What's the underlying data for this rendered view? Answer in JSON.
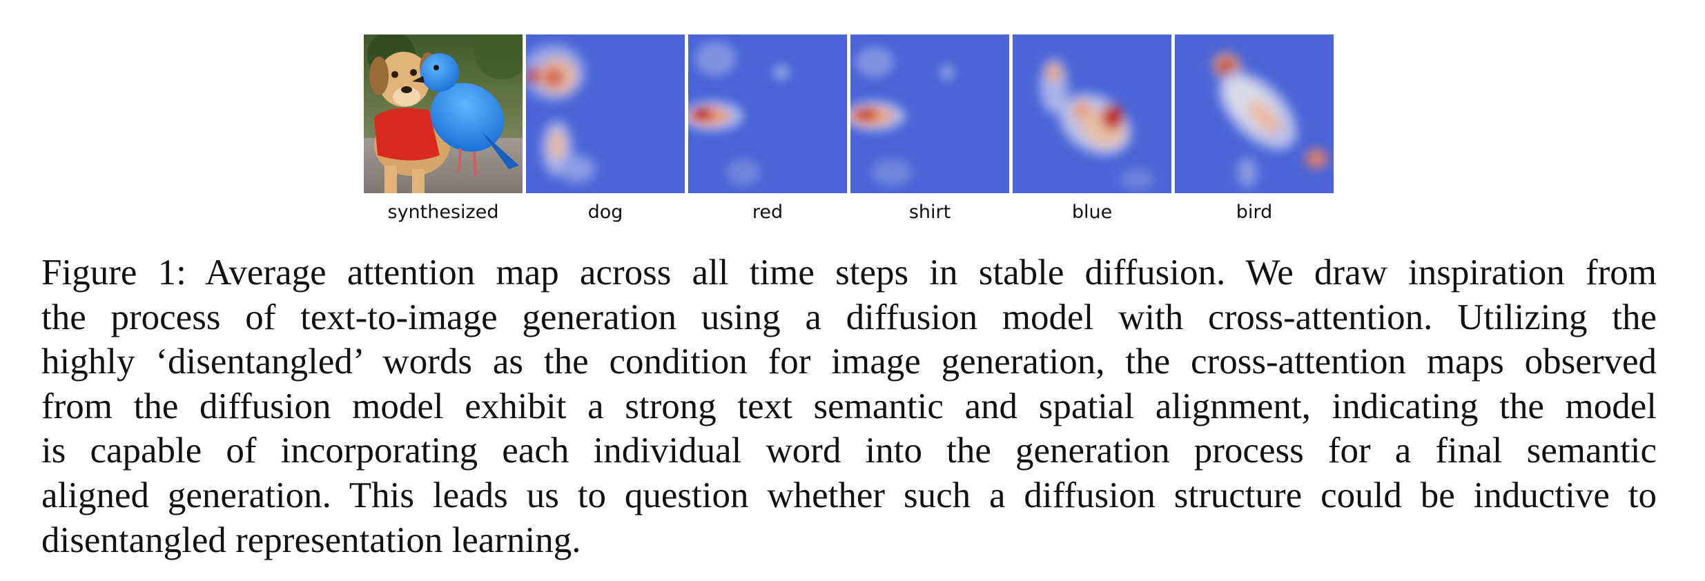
{
  "figure": {
    "panels": [
      {
        "id": "synthesized",
        "label": "synthesized",
        "kind": "photo"
      },
      {
        "id": "dog",
        "label": "dog",
        "kind": "heatmap"
      },
      {
        "id": "red",
        "label": "red",
        "kind": "heatmap"
      },
      {
        "id": "shirt",
        "label": "shirt",
        "kind": "heatmap"
      },
      {
        "id": "blue",
        "label": "blue",
        "kind": "heatmap"
      },
      {
        "id": "bird",
        "label": "bird",
        "kind": "heatmap"
      }
    ],
    "colors": {
      "heatmap_low": "#4a64d8",
      "heatmap_mid": "#dcdce8",
      "heatmap_high": "#c0281c"
    }
  },
  "caption": {
    "lines": [
      "Figure 1: Average attention map across all time steps in stable diffusion. We draw inspiration from",
      "the process of text-to-image generation using a diffusion model with cross-attention. Utilizing the",
      "highly ‘disentangled’ words as the condition for image generation, the cross-attention maps observed",
      "from the diffusion model exhibit a strong text semantic and spatial alignment, indicating the model",
      "is capable of incorporating each individual word into the generation process for a final semantic",
      "aligned generation. This leads us to question whether such a diffusion structure could be inductive to",
      "disentangled representation learning."
    ]
  }
}
